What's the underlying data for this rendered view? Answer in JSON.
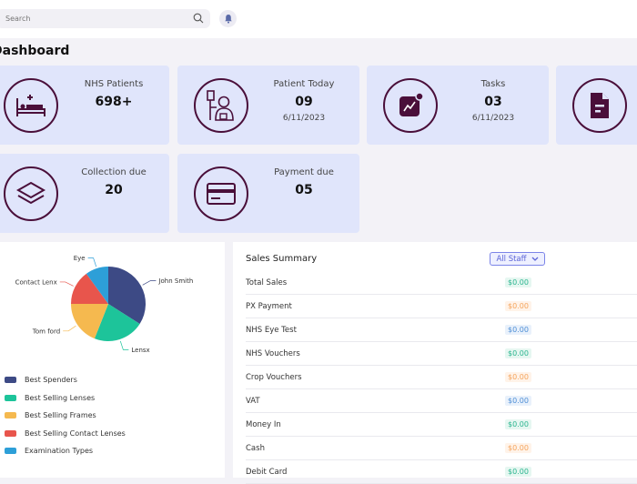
{
  "header": {
    "search_placeholder": "Search",
    "icons": [
      "search-icon",
      "bell-icon"
    ]
  },
  "page_title": "Dashboard",
  "cards": [
    {
      "label": "NHS Patients",
      "value": "698+",
      "date": "",
      "icon": "hospital-bed-icon"
    },
    {
      "label": "Patient Today",
      "value": "09",
      "date": "6/11/2023",
      "icon": "patient-iv-icon"
    },
    {
      "label": "Tasks",
      "value": "03",
      "date": "6/11/2023",
      "icon": "chart-notification-icon"
    },
    {
      "label": "",
      "value": "",
      "date": "",
      "icon": "document-icon"
    },
    {
      "label": "Collection due",
      "value": "20",
      "date": "",
      "icon": "layers-icon"
    },
    {
      "label": "Payment due",
      "value": "05",
      "date": "",
      "icon": "credit-card-icon"
    }
  ],
  "chart_data": {
    "type": "pie",
    "slices": [
      {
        "label": "John Smith",
        "value": 34,
        "color": "#3d4a85"
      },
      {
        "label": "Lensx",
        "value": 22,
        "color": "#1dc49a"
      },
      {
        "label": "Tom ford",
        "value": 19,
        "color": "#f5b94f"
      },
      {
        "label": "Contact Lenx",
        "value": 15,
        "color": "#e8554c"
      },
      {
        "label": "Eye",
        "value": 10,
        "color": "#2d9fd8"
      }
    ],
    "legend": [
      {
        "label": "Best Spenders",
        "color": "#3d4a85"
      },
      {
        "label": "Best Selling Lenses",
        "color": "#1dc49a"
      },
      {
        "label": "Best Selling Frames",
        "color": "#f5b94f"
      },
      {
        "label": "Best Selling Contact Lenses",
        "color": "#e8554c"
      },
      {
        "label": "Examination Types",
        "color": "#2d9fd8"
      }
    ],
    "legend_placement": "bottom-left"
  },
  "sales": {
    "title": "Sales Summary",
    "staff_select": "All Staff",
    "rows": [
      {
        "label": "Total Sales",
        "amount": "$0.00",
        "tone": "g"
      },
      {
        "label": "PX Payment",
        "amount": "$0.00",
        "tone": "o"
      },
      {
        "label": "NHS Eye Test",
        "amount": "$0.00",
        "tone": "b"
      },
      {
        "label": "NHS Vouchers",
        "amount": "$0.00",
        "tone": "g"
      },
      {
        "label": "Crop Vouchers",
        "amount": "$0.00",
        "tone": "o"
      },
      {
        "label": "VAT",
        "amount": "$0.00",
        "tone": "b"
      },
      {
        "label": "Money In",
        "amount": "$0.00",
        "tone": "g"
      },
      {
        "label": "Cash",
        "amount": "$0.00",
        "tone": "o"
      },
      {
        "label": "Debit Card",
        "amount": "$0.00",
        "tone": "g"
      }
    ]
  }
}
